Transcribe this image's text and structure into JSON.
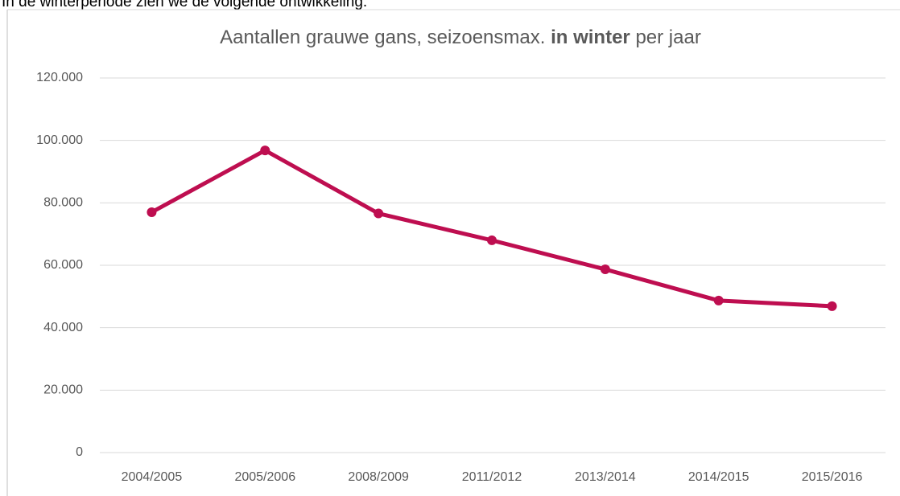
{
  "intro": "In de winterperiode zien we de volgende ontwikkeling.",
  "chart_data": {
    "type": "line",
    "title": [
      "Aantallen grauwe gans, seizoensmax.",
      "in winter",
      "per jaar"
    ],
    "categories": [
      "2004/2005",
      "2005/2006",
      "2008/2009",
      "2011/2012",
      "2013/2014",
      "2014/2015",
      "2015/2016"
    ],
    "series": [
      {
        "name": "Aantallen",
        "color": "#be0e50",
        "values": [
          77000,
          96800,
          76600,
          68000,
          58700,
          48700,
          46900
        ]
      }
    ],
    "ylim": [
      0,
      120000
    ],
    "yticks": [
      0,
      {
        "value": 20000,
        "label": "20.000"
      },
      {
        "value": 40000,
        "label": "40.000"
      },
      {
        "value": 60000,
        "label": "60.000"
      },
      {
        "value": 80000,
        "label": "80.000"
      },
      {
        "value": 100000,
        "label": "100.000"
      },
      {
        "value": 120000,
        "label": "120.000"
      }
    ],
    "grid": true
  }
}
